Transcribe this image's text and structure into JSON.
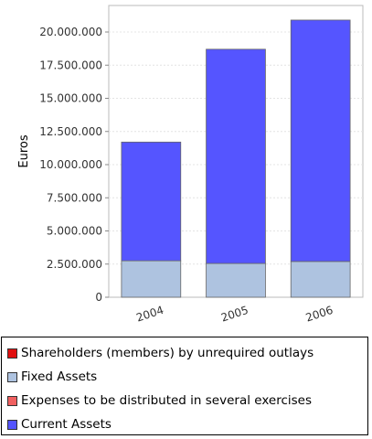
{
  "chart_data": {
    "type": "bar",
    "stacked": true,
    "categories": [
      "2004",
      "2005",
      "2006"
    ],
    "ylabel": "Euros",
    "ylim": [
      0,
      22000000
    ],
    "yticks": [
      0,
      2500000,
      5000000,
      7500000,
      10000000,
      12500000,
      15000000,
      17500000,
      20000000
    ],
    "ytick_labels": [
      "0",
      "2.500.000",
      "5.000.000",
      "7.500.000",
      "10.000.000",
      "12.500.000",
      "15.000.000",
      "17.500.000",
      "20.000.000"
    ],
    "grid": true,
    "legend_position": "bottom",
    "series": [
      {
        "name": "Shareholders (members) by unrequired outlays",
        "color": "#e01010",
        "values": [
          0,
          0,
          0
        ]
      },
      {
        "name": "Fixed Assets",
        "color": "#aec3e0",
        "values": [
          2750000,
          2550000,
          2700000
        ]
      },
      {
        "name": "Expenses to be distributed in several exercises",
        "color": "#f06060",
        "values": [
          0,
          0,
          0
        ]
      },
      {
        "name": "Current Assets",
        "color": "#5555ff",
        "values": [
          8950000,
          16150000,
          18200000
        ]
      }
    ]
  }
}
